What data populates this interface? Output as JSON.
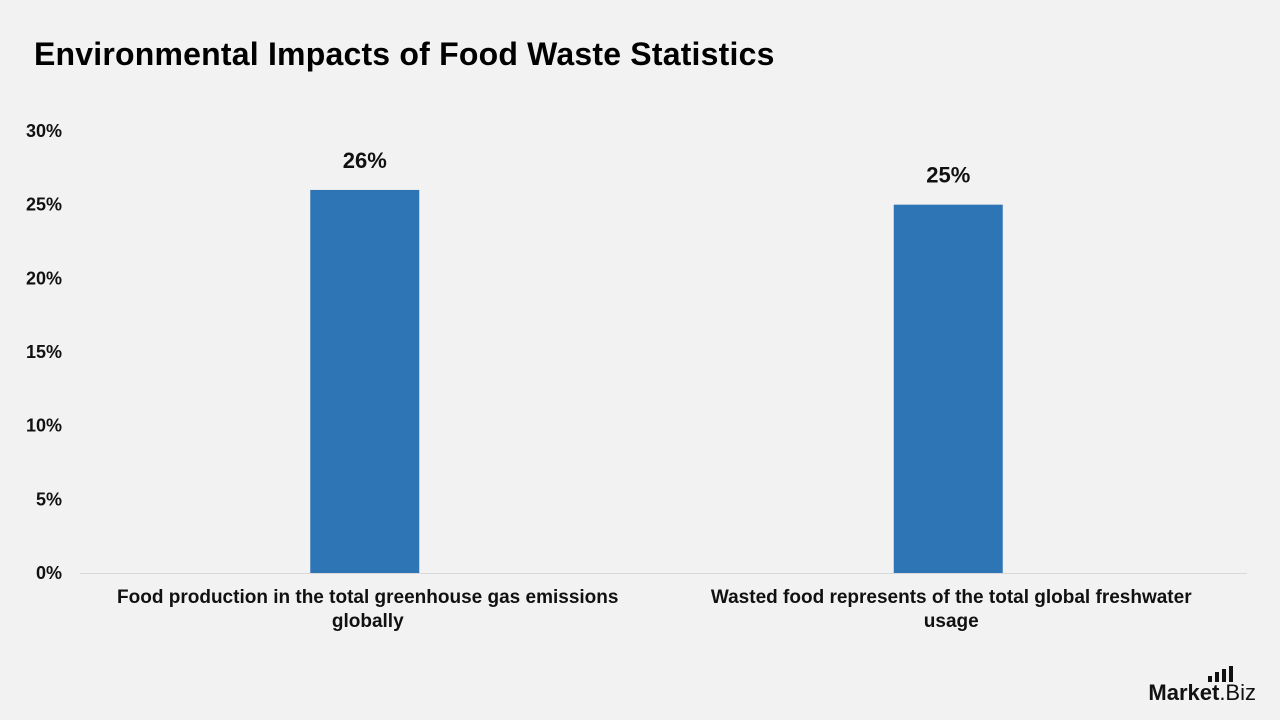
{
  "title": "Environmental Impacts of Food Waste Statistics",
  "brand": {
    "name_main": "Market",
    "name_suffix": ".Biz",
    "logo_icon": "bar-chart-icon"
  },
  "colors": {
    "background": "#f2f2f2",
    "bar": "#2e75b6",
    "text": "#111111",
    "axis_line": "#d9d9d9"
  },
  "chart_data": {
    "type": "bar",
    "title": "Environmental Impacts of Food Waste Statistics",
    "categories": [
      [
        "Food production in the total greenhouse gas emissions",
        "globally"
      ],
      [
        "Wasted food represents of the total global freshwater",
        "usage"
      ]
    ],
    "values": [
      26,
      25
    ],
    "value_labels": [
      "26%",
      "25%"
    ],
    "ylim": [
      0,
      30
    ],
    "yticks": [
      0,
      5,
      10,
      15,
      20,
      25,
      30
    ],
    "ytick_labels": [
      "0%",
      "5%",
      "10%",
      "15%",
      "20%",
      "25%",
      "30%"
    ],
    "xlabel": "",
    "ylabel": "",
    "grid": false,
    "legend": "none"
  }
}
